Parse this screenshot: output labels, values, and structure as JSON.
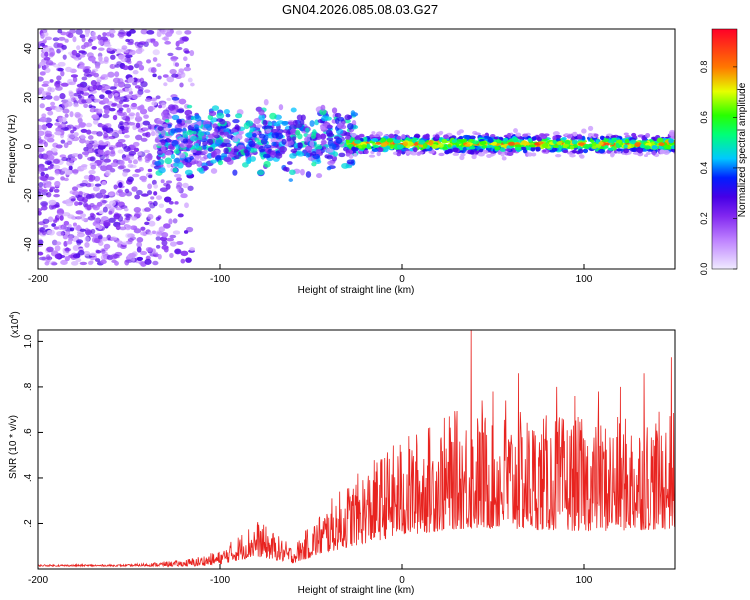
{
  "title": "GN04.2026.085.08.03.G27",
  "chart_data": [
    {
      "type": "heatmap",
      "title": "GN04.2026.085.08.03.G27",
      "xlabel": "Height of straight line (km)",
      "ylabel": "Frequency (Hz)",
      "xlim": [
        -200,
        150
      ],
      "ylim": [
        -50,
        48
      ],
      "xticks": [
        -200,
        -100,
        0,
        100
      ],
      "yticks": [
        -40,
        -20,
        0,
        20,
        40
      ],
      "colorbar": {
        "label": "Normalized spectral amplitude",
        "range": [
          0.0,
          0.95
        ],
        "ticks": [
          "0.0",
          "0.2",
          "0.4",
          "0.6",
          "0.8"
        ]
      },
      "description_series": [
        {
          "name": "scattered noise",
          "x_range": [
            -200,
            -115
          ],
          "freq_spread": 48,
          "amplitude": 0.1
        },
        {
          "name": "ridge onset",
          "x_range": [
            -135,
            -25
          ],
          "freq_center": 3,
          "freq_spread": 10,
          "amplitude": 0.35
        },
        {
          "name": "coherent ridge",
          "x_range": [
            -30,
            150
          ],
          "freq_center": 1,
          "freq_spread": 3,
          "amplitude": 0.8
        }
      ]
    },
    {
      "type": "line",
      "xlabel": "Height of straight line (km)",
      "ylabel": "SNR (10 * v/v)",
      "y_multiplier": "(x10",
      "y_multiplier_exp": "4",
      "y_multiplier_close": ")",
      "xlim": [
        -200,
        150
      ],
      "ylim": [
        0,
        1.05
      ],
      "xticks": [
        -200,
        -100,
        0,
        100
      ],
      "yticks": [
        0.2,
        0.4,
        0.6,
        0.8,
        1.0
      ],
      "series_color": "#e8231f",
      "envelope": [
        {
          "x": -200,
          "y": 0.02
        },
        {
          "x": -150,
          "y": 0.02
        },
        {
          "x": -120,
          "y": 0.04
        },
        {
          "x": -100,
          "y": 0.08
        },
        {
          "x": -90,
          "y": 0.15
        },
        {
          "x": -80,
          "y": 0.22
        },
        {
          "x": -70,
          "y": 0.16
        },
        {
          "x": -60,
          "y": 0.1
        },
        {
          "x": -50,
          "y": 0.2
        },
        {
          "x": -40,
          "y": 0.3
        },
        {
          "x": -30,
          "y": 0.38
        },
        {
          "x": -20,
          "y": 0.45
        },
        {
          "x": -10,
          "y": 0.52
        },
        {
          "x": 0,
          "y": 0.58
        },
        {
          "x": 10,
          "y": 0.62
        },
        {
          "x": 20,
          "y": 0.66
        },
        {
          "x": 30,
          "y": 0.7
        },
        {
          "x": 50,
          "y": 0.7
        },
        {
          "x": 80,
          "y": 0.68
        },
        {
          "x": 110,
          "y": 0.66
        },
        {
          "x": 130,
          "y": 0.68
        },
        {
          "x": 150,
          "y": 0.7
        }
      ],
      "peaks": [
        {
          "x": 38,
          "y": 1.05
        },
        {
          "x": 148,
          "y": 0.93
        },
        {
          "x": 64,
          "y": 0.86
        },
        {
          "x": 133,
          "y": 0.86
        },
        {
          "x": 85,
          "y": 0.8
        },
        {
          "x": 50,
          "y": 0.78
        },
        {
          "x": 108,
          "y": 0.78
        },
        {
          "x": 120,
          "y": 0.8
        },
        {
          "x": 95,
          "y": 0.76
        },
        {
          "x": 44,
          "y": 0.74
        },
        {
          "x": 57,
          "y": 0.74
        }
      ]
    }
  ]
}
